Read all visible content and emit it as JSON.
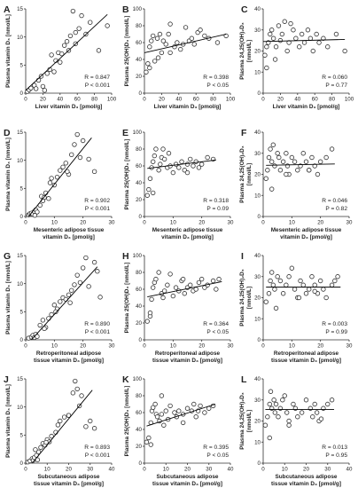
{
  "figure": {
    "colors": {
      "marker_edge": "#333333",
      "marker_fill": "#ffffff",
      "fit_line": "#000000"
    },
    "row_xlabels": [
      [
        "Liver vitamin D₃ [pmol/g]"
      ],
      [
        "Mesenteric adipose tissue",
        "vitamin D₃ [pmol/g]"
      ],
      [
        "Retroperitoneal adipose",
        "tissue vitamin D₃ [pmol/g]"
      ],
      [
        "Subcutaneous adipose",
        "tissue vitamin D₃ [pmol/g]"
      ]
    ],
    "col_ylabels": [
      [
        "Plasma vitamin D₃ [nmol/L]"
      ],
      [
        "Plasma 25(OH)D₃ [nmol/L]"
      ],
      [
        "Plasma 24,25(OH)₂D₃",
        "[nmol/L]"
      ]
    ]
  },
  "chart_data": [
    {
      "id": "A",
      "type": "scatter",
      "letter": "A",
      "xlim": [
        0,
        100
      ],
      "xticks": [
        0,
        20,
        40,
        60,
        80,
        100
      ],
      "ylim": [
        0,
        15
      ],
      "yticks": [
        0,
        5,
        10,
        15
      ],
      "r_text": "R = 0.847",
      "p_text": "P < 0.001",
      "fit": [
        [
          0,
          0.5
        ],
        [
          95,
          14
        ]
      ],
      "x": [
        2,
        4,
        6,
        10,
        12,
        15,
        18,
        20,
        22,
        25,
        28,
        30,
        33,
        35,
        38,
        40,
        42,
        45,
        48,
        50,
        52,
        55,
        58,
        62,
        65,
        70,
        75,
        85,
        95,
        58
      ],
      "y": [
        0.3,
        0.6,
        0.9,
        1.4,
        0.8,
        2.3,
        3.0,
        1.2,
        0.5,
        3.5,
        4.2,
        6.8,
        3.8,
        5.8,
        7.2,
        5.5,
        7.0,
        8.5,
        9.2,
        7.6,
        10.2,
        14.6,
        8.8,
        11.5,
        13.8,
        10.5,
        12.6,
        7.6,
        12.0,
        10.8
      ]
    },
    {
      "id": "B",
      "type": "scatter",
      "letter": "B",
      "xlim": [
        0,
        100
      ],
      "xticks": [
        0,
        20,
        40,
        60,
        80,
        100
      ],
      "ylim": [
        0,
        100
      ],
      "yticks": [
        0,
        20,
        40,
        60,
        80,
        100
      ],
      "r_text": "R = 0.398",
      "p_text": "P < 0.05",
      "fit": [
        [
          0,
          48
        ],
        [
          95,
          70
        ]
      ],
      "x": [
        2,
        4,
        6,
        8,
        10,
        12,
        15,
        18,
        20,
        22,
        25,
        28,
        30,
        35,
        38,
        42,
        45,
        48,
        52,
        55,
        58,
        62,
        65,
        70,
        75,
        85,
        95,
        6,
        16,
        30
      ],
      "y": [
        25,
        35,
        55,
        62,
        68,
        38,
        65,
        70,
        48,
        62,
        58,
        70,
        48,
        55,
        60,
        52,
        58,
        78,
        62,
        65,
        58,
        72,
        75,
        68,
        65,
        60,
        68,
        30,
        42,
        82
      ]
    },
    {
      "id": "C",
      "type": "scatter",
      "letter": "C",
      "xlim": [
        0,
        100
      ],
      "xticks": [
        0,
        20,
        40,
        60,
        80,
        100
      ],
      "ylim": [
        0,
        40
      ],
      "yticks": [
        0,
        10,
        20,
        30,
        40
      ],
      "r_text": "R = 0.060",
      "p_text": "P = 0.77",
      "fit": [
        [
          0,
          24.5
        ],
        [
          95,
          25.5
        ]
      ],
      "x": [
        2,
        4,
        6,
        8,
        10,
        12,
        15,
        18,
        20,
        22,
        25,
        28,
        30,
        35,
        38,
        42,
        45,
        48,
        52,
        55,
        58,
        62,
        65,
        70,
        75,
        85,
        95,
        4,
        14,
        32
      ],
      "y": [
        18,
        12,
        24,
        28,
        30,
        26,
        22,
        32,
        25,
        28,
        34,
        20,
        24,
        30,
        26,
        22,
        28,
        24,
        30,
        26,
        20,
        28,
        24,
        26,
        22,
        28,
        20,
        22,
        16,
        33
      ]
    },
    {
      "id": "D",
      "type": "scatter",
      "letter": "D",
      "xlim": [
        0,
        30
      ],
      "xticks": [
        0,
        10,
        20,
        30
      ],
      "ylim": [
        0,
        15
      ],
      "yticks": [
        0,
        5,
        10,
        15
      ],
      "r_text": "R = 0.902",
      "p_text": "P < 0.001",
      "fit": [
        [
          1,
          0
        ],
        [
          23,
          14
        ]
      ],
      "x": [
        1,
        1.5,
        2,
        2.5,
        3,
        3.5,
        4,
        5,
        5.5,
        6,
        7,
        8,
        8.5,
        9,
        10,
        11,
        12,
        13,
        14,
        15,
        16,
        17,
        18,
        19,
        20,
        22,
        24,
        3.2,
        6.5,
        14.5
      ],
      "y": [
        0.3,
        0.5,
        0.6,
        0.4,
        0.9,
        1.2,
        0.8,
        2.0,
        3.6,
        2.8,
        4.2,
        3.2,
        6.0,
        6.8,
        5.6,
        7.0,
        8.2,
        8.8,
        9.5,
        7.5,
        11.0,
        12.8,
        14.6,
        10.5,
        13.5,
        10.2,
        8.0,
        0.2,
        3.4,
        8.0
      ]
    },
    {
      "id": "E",
      "type": "scatter",
      "letter": "E",
      "xlim": [
        0,
        30
      ],
      "xticks": [
        0,
        10,
        20,
        30
      ],
      "ylim": [
        0,
        100
      ],
      "yticks": [
        0,
        20,
        40,
        60,
        80,
        100
      ],
      "r_text": "R = 0.318",
      "p_text": "P = 0.09",
      "fit": [
        [
          1,
          57
        ],
        [
          25,
          67
        ]
      ],
      "x": [
        1,
        1.5,
        2,
        2.5,
        3,
        3.5,
        4,
        5,
        5.5,
        6,
        7,
        8,
        8.5,
        9,
        10,
        11,
        12,
        13,
        14,
        15,
        16,
        17,
        18,
        19,
        20,
        22,
        24,
        3,
        6.5,
        15
      ],
      "y": [
        25,
        32,
        45,
        58,
        65,
        72,
        80,
        55,
        62,
        70,
        68,
        58,
        75,
        60,
        52,
        62,
        58,
        65,
        55,
        62,
        68,
        60,
        65,
        58,
        62,
        70,
        68,
        28,
        80,
        52
      ]
    },
    {
      "id": "F",
      "type": "scatter",
      "letter": "F",
      "xlim": [
        0,
        30
      ],
      "xticks": [
        0,
        10,
        20,
        30
      ],
      "ylim": [
        0,
        40
      ],
      "yticks": [
        0,
        10,
        20,
        30,
        40
      ],
      "r_text": "R = 0.046",
      "p_text": "P = 0.82",
      "fit": [
        [
          1,
          24.3
        ],
        [
          25,
          24.9
        ]
      ],
      "x": [
        1,
        1.5,
        2,
        2.5,
        3,
        3.5,
        4,
        5,
        5.5,
        6,
        7,
        8,
        8.5,
        9,
        10,
        11,
        12,
        13,
        14,
        15,
        16,
        17,
        18,
        19,
        20,
        22,
        24,
        3,
        8,
        16
      ],
      "y": [
        18,
        22,
        28,
        32,
        26,
        34,
        24,
        30,
        28,
        22,
        26,
        30,
        24,
        20,
        28,
        26,
        22,
        24,
        30,
        26,
        22,
        28,
        24,
        20,
        26,
        28,
        32,
        13,
        20,
        22
      ]
    },
    {
      "id": "G",
      "type": "scatter",
      "letter": "G",
      "xlim": [
        0,
        30
      ],
      "xticks": [
        0,
        10,
        20,
        30
      ],
      "ylim": [
        0,
        15
      ],
      "yticks": [
        0,
        5,
        10,
        15
      ],
      "r_text": "R = 0.890",
      "p_text": "P < 0.001",
      "fit": [
        [
          2,
          0
        ],
        [
          25,
          13
        ]
      ],
      "x": [
        1,
        2,
        2.5,
        3,
        3.5,
        4,
        5,
        6,
        7,
        8,
        9,
        10,
        11,
        12,
        13,
        14,
        15,
        16,
        17,
        18,
        19,
        20,
        21,
        22,
        24,
        25,
        26,
        6.5,
        10.5,
        15.5
      ],
      "y": [
        0.3,
        0.5,
        0.8,
        0.4,
        1.0,
        0.6,
        2.6,
        3.5,
        2.2,
        3.8,
        4.5,
        6.2,
        5.5,
        6.8,
        7.5,
        7.2,
        8.0,
        8.8,
        9.8,
        11.5,
        10.2,
        12.8,
        14.6,
        9.5,
        13.8,
        12.2,
        7.6,
        2.0,
        5.0,
        6.6
      ]
    },
    {
      "id": "H",
      "type": "scatter",
      "letter": "H",
      "xlim": [
        0,
        30
      ],
      "xticks": [
        0,
        10,
        20,
        30
      ],
      "ylim": [
        0,
        100
      ],
      "yticks": [
        0,
        20,
        40,
        60,
        80,
        100
      ],
      "r_text": "R = 0.364",
      "p_text": "P < 0.05",
      "fit": [
        [
          1,
          51
        ],
        [
          27,
          69
        ]
      ],
      "x": [
        1,
        2,
        2.5,
        3,
        3.5,
        4,
        5,
        6,
        7,
        8,
        9,
        10,
        11,
        12,
        13,
        14,
        15,
        16,
        17,
        18,
        19,
        20,
        21,
        22,
        24,
        25,
        26,
        2,
        6.5,
        13.5
      ],
      "y": [
        22,
        28,
        48,
        62,
        68,
        72,
        80,
        55,
        58,
        65,
        78,
        52,
        62,
        58,
        70,
        55,
        62,
        65,
        58,
        60,
        68,
        72,
        62,
        65,
        70,
        60,
        72,
        32,
        50,
        72
      ]
    },
    {
      "id": "I",
      "type": "scatter",
      "letter": "I",
      "xlim": [
        0,
        30
      ],
      "xticks": [
        0,
        10,
        20,
        30
      ],
      "ylim": [
        0,
        40
      ],
      "yticks": [
        0,
        10,
        20,
        30,
        40
      ],
      "r_text": "R = 0.003",
      "p_text": "P = 0.99",
      "fit": [
        [
          1,
          25
        ],
        [
          27,
          25
        ]
      ],
      "x": [
        1,
        2,
        2.5,
        3,
        3.5,
        4,
        5,
        6,
        7,
        8,
        9,
        10,
        11,
        12,
        13,
        14,
        15,
        16,
        17,
        18,
        19,
        20,
        21,
        22,
        24,
        25,
        26,
        4.5,
        12.5,
        18
      ],
      "y": [
        18,
        22,
        28,
        32,
        26,
        24,
        30,
        28,
        22,
        26,
        30,
        34,
        24,
        20,
        28,
        26,
        22,
        24,
        30,
        26,
        22,
        28,
        24,
        20,
        26,
        28,
        30,
        15,
        20,
        23
      ]
    },
    {
      "id": "J",
      "type": "scatter",
      "letter": "J",
      "xlim": [
        0,
        40
      ],
      "xticks": [
        0,
        10,
        20,
        30,
        40
      ],
      "ylim": [
        0,
        15
      ],
      "yticks": [
        0,
        5,
        10,
        15
      ],
      "r_text": "R = 0.893",
      "p_text": "P < 0.001",
      "fit": [
        [
          3,
          0
        ],
        [
          31,
          13
        ]
      ],
      "x": [
        1,
        2,
        3,
        3.5,
        4,
        5,
        5.5,
        6,
        7,
        8,
        9,
        10,
        11,
        12,
        14,
        15,
        16,
        18,
        20,
        22,
        23,
        24,
        25,
        26,
        28,
        30,
        32,
        4.5,
        9.5,
        20
      ],
      "y": [
        0.2,
        0.4,
        0.8,
        0.5,
        1.0,
        1.4,
        0.6,
        2.0,
        2.8,
        3.5,
        3.2,
        4.2,
        3.8,
        4.8,
        5.5,
        6.8,
        7.5,
        8.2,
        8.5,
        12.5,
        14.6,
        13.2,
        10.2,
        12.0,
        6.5,
        7.5,
        6.2,
        2.4,
        3.7,
        8.5
      ]
    },
    {
      "id": "K",
      "type": "scatter",
      "letter": "K",
      "xlim": [
        0,
        40
      ],
      "xticks": [
        0,
        10,
        20,
        30,
        40
      ],
      "ylim": [
        0,
        100
      ],
      "yticks": [
        0,
        20,
        40,
        60,
        80,
        100
      ],
      "r_text": "R = 0.395",
      "p_text": "P < 0.05",
      "fit": [
        [
          1,
          44
        ],
        [
          33,
          70
        ]
      ],
      "x": [
        1,
        2,
        3,
        3.5,
        4,
        5,
        5.5,
        6,
        7,
        8,
        9,
        10,
        11,
        12,
        14,
        15,
        16,
        18,
        20,
        22,
        23,
        24,
        25,
        26,
        28,
        30,
        32,
        3,
        8,
        18
      ],
      "y": [
        25,
        30,
        48,
        62,
        66,
        70,
        58,
        55,
        50,
        58,
        45,
        62,
        52,
        68,
        60,
        55,
        62,
        58,
        65,
        62,
        70,
        55,
        62,
        68,
        60,
        65,
        68,
        22,
        80,
        48
      ]
    },
    {
      "id": "L",
      "type": "scatter",
      "letter": "L",
      "xlim": [
        0,
        40
      ],
      "xticks": [
        0,
        10,
        20,
        30,
        40
      ],
      "ylim": [
        0,
        40
      ],
      "yticks": [
        0,
        10,
        20,
        30,
        40
      ],
      "r_text": "R = 0.013",
      "p_text": "P = 0.95",
      "fit": [
        [
          1,
          25.5
        ],
        [
          33,
          25.5
        ]
      ],
      "x": [
        1,
        2,
        3,
        3.5,
        4,
        5,
        5.5,
        6,
        7,
        8,
        9,
        10,
        11,
        12,
        14,
        15,
        16,
        18,
        20,
        22,
        23,
        24,
        25,
        26,
        28,
        30,
        32,
        3,
        12,
        27
      ],
      "y": [
        18,
        22,
        28,
        34,
        26,
        30,
        24,
        28,
        22,
        26,
        30,
        32,
        24,
        20,
        28,
        26,
        22,
        24,
        30,
        26,
        22,
        28,
        24,
        20,
        26,
        28,
        30,
        12,
        18,
        21
      ]
    }
  ]
}
